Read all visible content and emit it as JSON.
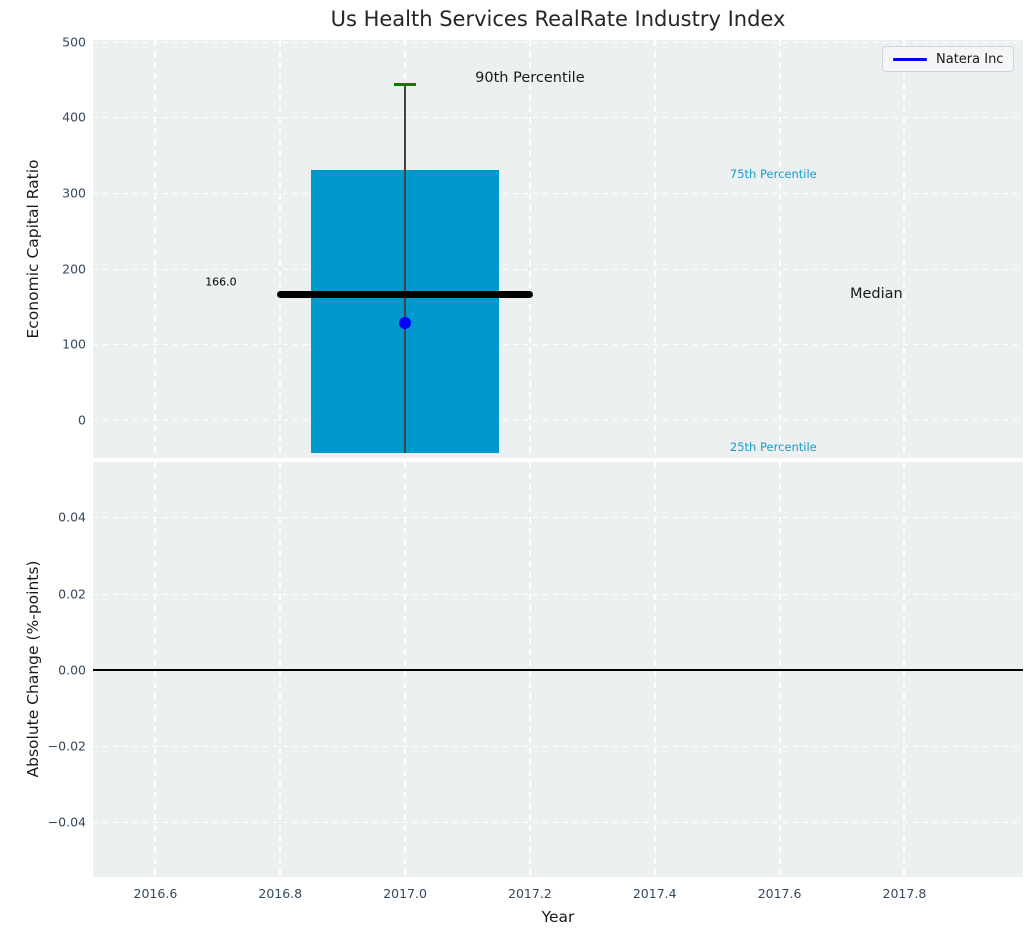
{
  "figure": {
    "title": "Us Health Services RealRate Industry Index"
  },
  "colors": {
    "axes_background": "#ecf0f1",
    "grid": "#ffffff",
    "tick_label": "#34495e",
    "text": "#1a1a1a",
    "bar_cyan": "#0099cd",
    "point_blue": "#0000ff",
    "cap_green": "#008000",
    "median_black": "#000000",
    "whisker_gray": "#444444",
    "percentile_label_cyan": "#1a9ccb"
  },
  "legend": {
    "label": "Natera Inc",
    "line_color": "#0000ff"
  },
  "chart_data": [
    {
      "type": "box-percentile",
      "title": "Us Health Services RealRate Industry Index",
      "ylabel": "Economic Capital Ratio",
      "xlabel": "",
      "xlim": [
        2016.5,
        2017.99
      ],
      "ylim": [
        -50,
        502
      ],
      "grid": true,
      "legend_position": "upper right",
      "xtick_values": [
        2016.6,
        2016.8,
        2017.0,
        2017.2,
        2017.4,
        2017.6,
        2017.8
      ],
      "show_xtick_labels": false,
      "ytick_values": [
        500,
        400,
        300,
        200,
        100,
        0
      ],
      "ytick_labels": [
        "500",
        "400",
        "300",
        "200",
        "100",
        "0"
      ],
      "box": {
        "x_left": 2016.85,
        "x_right": 2017.15,
        "top_75th_percentile": 330,
        "bottom_25th_percentile": -44,
        "color": "#0099cd"
      },
      "median_line": {
        "value": 166.0,
        "label": "166.0",
        "x_left": 2016.8,
        "x_right": 2017.2,
        "color": "#000000"
      },
      "whisker": {
        "x": 2017.0,
        "low": -44,
        "high_90th_percentile": 443,
        "line_color": "#444444",
        "cap_color": "#008000",
        "cap_width_x": 0.034
      },
      "point": {
        "series": "Natera Inc",
        "x": 2017.0,
        "y": 128,
        "color": "#0000ff"
      },
      "annotations": [
        {
          "id": "90th-percentile",
          "text": "90th Percentile",
          "x": 2017.2,
          "y": 452,
          "color": "#1a1a1a",
          "font_px": 14.5
        },
        {
          "id": "75th-percentile",
          "text": "75th Percentile",
          "x": 2017.59,
          "y": 325,
          "color": "#1a9ccb",
          "font_px": 11.5
        },
        {
          "id": "median",
          "text": "Median",
          "x": 2017.755,
          "y": 166,
          "color": "#1a1a1a",
          "font_px": 14.5
        },
        {
          "id": "25th-percentile",
          "text": "25th Percentile",
          "x": 2017.59,
          "y": -36,
          "color": "#1a9ccb",
          "font_px": 11.5
        },
        {
          "id": "median-value",
          "text": "166.0",
          "x": 2016.705,
          "y": 182,
          "color": "#000000",
          "font_px": 11
        }
      ]
    },
    {
      "type": "line",
      "ylabel": "Absolute Change (%-points)",
      "xlabel": "Year",
      "xlim": [
        2016.5,
        2017.99
      ],
      "ylim": [
        -0.0543,
        0.0545
      ],
      "grid": true,
      "xtick_values": [
        2016.6,
        2016.8,
        2017.0,
        2017.2,
        2017.4,
        2017.6,
        2017.8
      ],
      "xtick_labels": [
        "2016.6",
        "2016.8",
        "2017.0",
        "2017.2",
        "2017.4",
        "2017.6",
        "2017.8"
      ],
      "show_xtick_labels": true,
      "ytick_values": [
        0.04,
        0.02,
        0.0,
        -0.02,
        -0.04
      ],
      "ytick_labels": [
        "0.04",
        "0.02",
        "0.00",
        "−0.02",
        "−0.04"
      ],
      "zero_line": {
        "y": 0.0,
        "color": "#000000"
      }
    }
  ]
}
